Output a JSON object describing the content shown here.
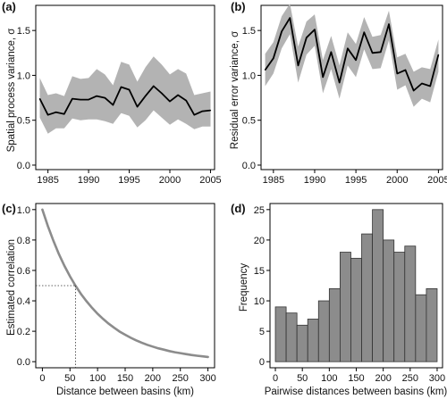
{
  "panels": [
    {
      "letter": "(a)",
      "ylabel": "Spatial process variance, σ",
      "xlabel": "",
      "xticks": [
        "1985",
        "1990",
        "1995",
        "2000",
        "2005"
      ],
      "yticks": [
        "0.0",
        "0.5",
        "1.0",
        "1.5"
      ]
    },
    {
      "letter": "(b)",
      "ylabel": "Residual error variance, σ",
      "xlabel": "",
      "xticks": [
        "1985",
        "1990",
        "1995",
        "2000",
        "2005"
      ],
      "yticks": [
        "0.0",
        "0.5",
        "1.0",
        "1.5"
      ]
    },
    {
      "letter": "(c)",
      "ylabel": "Estimated correlation",
      "xlabel": "Distance between basins (km)",
      "xticks": [
        "0",
        "50",
        "100",
        "150",
        "200",
        "250",
        "300"
      ],
      "yticks": [
        "0.0",
        "0.2",
        "0.4",
        "0.6",
        "0.8",
        "1.0"
      ]
    },
    {
      "letter": "(d)",
      "ylabel": "Frequency",
      "xlabel": "Pairwise distances between basins (km)",
      "xticks": [
        "0",
        "50",
        "100",
        "150",
        "200",
        "250",
        "300"
      ],
      "yticks": [
        "0",
        "5",
        "10",
        "15",
        "20",
        "25"
      ]
    }
  ],
  "colors": {
    "band": "#b3b3b3",
    "line": "#000000",
    "curve": "#8c8c8c",
    "bar": "#8c8c8c",
    "bar_edge": "#333333"
  },
  "chart_data": [
    {
      "type": "line",
      "title": "",
      "xlabel": "",
      "ylabel": "Spatial process variance, σ",
      "xlim": [
        1983.5,
        2005.5
      ],
      "ylim": [
        -0.05,
        1.78
      ],
      "grid": false,
      "x": [
        1984,
        1985,
        1986,
        1987,
        1988,
        1989,
        1990,
        1991,
        1992,
        1993,
        1994,
        1995,
        1996,
        1997,
        1998,
        1999,
        2000,
        2001,
        2002,
        2003,
        2004,
        2005
      ],
      "series": [
        {
          "role": "estimate",
          "values": [
            0.74,
            0.56,
            0.59,
            0.57,
            0.74,
            0.73,
            0.73,
            0.77,
            0.75,
            0.67,
            0.87,
            0.84,
            0.65,
            0.77,
            0.88,
            0.8,
            0.71,
            0.78,
            0.72,
            0.56,
            0.6,
            0.61
          ]
        },
        {
          "role": "upper",
          "values": [
            0.97,
            0.78,
            0.8,
            0.77,
            0.99,
            0.96,
            0.97,
            1.07,
            1.01,
            0.89,
            1.15,
            1.12,
            0.93,
            1.09,
            1.21,
            1.12,
            1.01,
            1.07,
            1.02,
            0.78,
            0.8,
            0.82
          ]
        },
        {
          "role": "lower",
          "values": [
            0.53,
            0.35,
            0.41,
            0.41,
            0.52,
            0.5,
            0.51,
            0.51,
            0.49,
            0.46,
            0.58,
            0.55,
            0.42,
            0.5,
            0.61,
            0.53,
            0.45,
            0.51,
            0.46,
            0.4,
            0.43,
            0.43
          ]
        }
      ]
    },
    {
      "type": "line",
      "title": "",
      "xlabel": "",
      "ylabel": "Residual error variance, σ",
      "xlim": [
        1983.5,
        2005.5
      ],
      "ylim": [
        -0.05,
        1.78
      ],
      "grid": false,
      "x": [
        1984,
        1985,
        1986,
        1987,
        1988,
        1989,
        1990,
        1991,
        1992,
        1993,
        1994,
        1995,
        1996,
        1997,
        1998,
        1999,
        2000,
        2001,
        2002,
        2003,
        2004,
        2005
      ],
      "series": [
        {
          "role": "estimate",
          "values": [
            1.06,
            1.19,
            1.49,
            1.64,
            1.11,
            1.42,
            1.51,
            0.98,
            1.26,
            0.92,
            1.3,
            1.17,
            1.48,
            1.25,
            1.26,
            1.57,
            1.02,
            1.06,
            0.83,
            0.91,
            0.88,
            1.23
          ]
        },
        {
          "role": "upper",
          "values": [
            1.24,
            1.37,
            1.66,
            1.8,
            1.32,
            1.6,
            1.68,
            1.17,
            1.44,
            1.11,
            1.48,
            1.35,
            1.65,
            1.43,
            1.45,
            1.72,
            1.2,
            1.24,
            1.04,
            1.09,
            1.07,
            1.4
          ]
        },
        {
          "role": "lower",
          "values": [
            0.88,
            1.02,
            1.3,
            1.46,
            0.92,
            1.23,
            1.33,
            0.8,
            1.07,
            0.74,
            1.11,
            0.98,
            1.29,
            1.07,
            1.08,
            1.39,
            0.84,
            0.89,
            0.65,
            0.74,
            0.7,
            1.04
          ]
        }
      ]
    },
    {
      "type": "line",
      "title": "",
      "xlabel": "Distance between basins (km)",
      "ylabel": "Estimated correlation",
      "xlim": [
        -12,
        312
      ],
      "ylim": [
        -0.04,
        1.04
      ],
      "grid": false,
      "x": [
        0,
        10,
        20,
        30,
        40,
        50,
        60,
        70,
        80,
        90,
        100,
        110,
        120,
        130,
        140,
        150,
        160,
        170,
        180,
        190,
        200,
        210,
        220,
        230,
        240,
        250,
        260,
        270,
        280,
        290,
        300
      ],
      "series": [
        {
          "role": "correlation",
          "values": [
            1.0,
            0.891,
            0.794,
            0.707,
            0.63,
            0.561,
            0.5,
            0.445,
            0.397,
            0.354,
            0.315,
            0.281,
            0.25,
            0.223,
            0.198,
            0.177,
            0.157,
            0.14,
            0.125,
            0.111,
            0.099,
            0.088,
            0.079,
            0.07,
            0.062,
            0.056,
            0.05,
            0.044,
            0.039,
            0.035,
            0.031
          ]
        }
      ],
      "reference": {
        "x": 60,
        "y": 0.5
      }
    },
    {
      "type": "bar",
      "title": "",
      "xlabel": "Pairwise distances between basins (km)",
      "ylabel": "Frequency",
      "xlim": [
        -10,
        310
      ],
      "ylim": [
        -1,
        26
      ],
      "grid": false,
      "bin_width": 20,
      "bin_starts": [
        0,
        20,
        40,
        60,
        80,
        100,
        120,
        140,
        160,
        180,
        200,
        220,
        240,
        260,
        280
      ],
      "values": [
        9,
        8,
        6,
        7,
        10,
        12,
        18,
        17,
        21,
        25,
        20,
        18,
        19,
        11,
        12
      ]
    }
  ]
}
